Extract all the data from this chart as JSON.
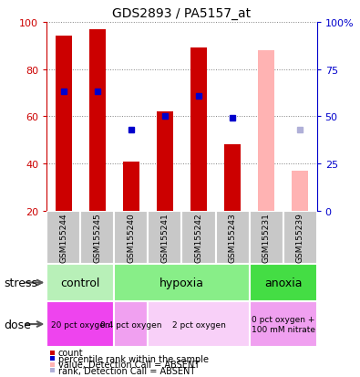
{
  "title": "GDS2893 / PA5157_at",
  "samples": [
    "GSM155244",
    "GSM155245",
    "GSM155240",
    "GSM155241",
    "GSM155242",
    "GSM155243",
    "GSM155231",
    "GSM155239"
  ],
  "count_values": [
    94,
    97,
    41,
    62,
    89,
    48,
    null,
    null
  ],
  "count_absent_values": [
    null,
    null,
    null,
    null,
    null,
    null,
    88,
    37
  ],
  "rank_values": [
    63,
    63,
    43,
    50,
    61,
    49,
    null,
    null
  ],
  "rank_absent_values": [
    null,
    null,
    null,
    null,
    null,
    null,
    null,
    43
  ],
  "ylim_left": [
    20,
    100
  ],
  "ylim_right": [
    0,
    100
  ],
  "left_ticks": [
    20,
    40,
    60,
    80,
    100
  ],
  "right_ticks": [
    0,
    25,
    50,
    75,
    100
  ],
  "right_tick_labels": [
    "0",
    "25",
    "50",
    "75",
    "100%"
  ],
  "bar_width": 0.5,
  "count_color": "#cc0000",
  "count_absent_color": "#ffb3b3",
  "rank_color": "#0000cc",
  "rank_absent_color": "#b0b0d8",
  "stress_groups": [
    {
      "label": "control",
      "start": 0,
      "end": 2,
      "color": "#b8f0b8"
    },
    {
      "label": "hypoxia",
      "start": 2,
      "end": 6,
      "color": "#88ee88"
    },
    {
      "label": "anoxia",
      "start": 6,
      "end": 8,
      "color": "#44dd44"
    }
  ],
  "dose_groups": [
    {
      "label": "20 pct oxygen",
      "start": 0,
      "end": 2,
      "color": "#ee44ee"
    },
    {
      "label": "0.4 pct oxygen",
      "start": 2,
      "end": 3,
      "color": "#f0a0f0"
    },
    {
      "label": "2 pct oxygen",
      "start": 3,
      "end": 6,
      "color": "#f8d0f8"
    },
    {
      "label": "0 pct oxygen +\n100 mM nitrate",
      "start": 6,
      "end": 8,
      "color": "#f0a0f0"
    }
  ],
  "legend_items": [
    {
      "color": "#cc0000",
      "label": "count"
    },
    {
      "color": "#0000cc",
      "label": "percentile rank within the sample"
    },
    {
      "color": "#ffb3b3",
      "label": "value, Detection Call = ABSENT"
    },
    {
      "color": "#b0b0d8",
      "label": "rank, Detection Call = ABSENT"
    }
  ],
  "sample_bg_color": "#c8c8c8",
  "stress_label": "stress",
  "dose_label": "dose",
  "fig_width": 3.95,
  "fig_height": 4.14,
  "fig_dpi": 100
}
